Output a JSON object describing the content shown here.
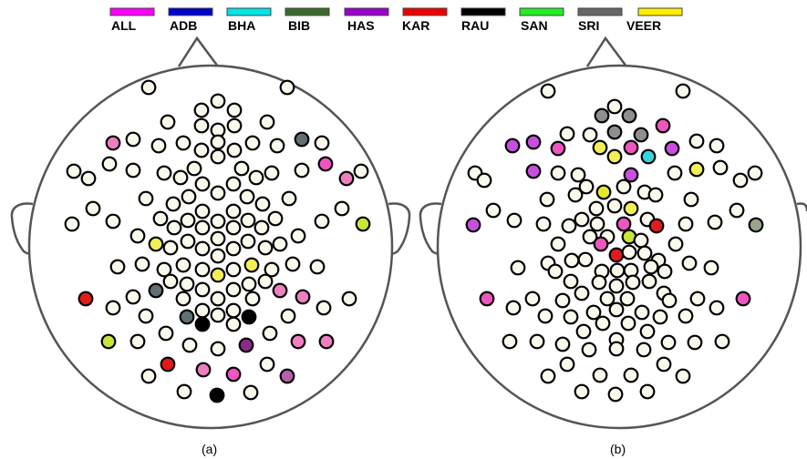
{
  "legend": [
    {
      "label": "ALL",
      "color": "#ff00ff"
    },
    {
      "label": "ADB",
      "color": "#0000cc"
    },
    {
      "label": "BHA",
      "color": "#00e5e5"
    },
    {
      "label": "BIB",
      "color": "#3b6b2a"
    },
    {
      "label": "HAS",
      "color": "#9900cc"
    },
    {
      "label": "KAR",
      "color": "#ee0000"
    },
    {
      "label": "RAU",
      "color": "#000000"
    },
    {
      "label": "SAN",
      "color": "#22ee22"
    },
    {
      "label": "SRI",
      "color": "#666666"
    },
    {
      "label": "VEER",
      "color": "#ffee00"
    }
  ],
  "panels": [
    {
      "caption": "(a)"
    },
    {
      "caption": "(b)"
    }
  ]
}
